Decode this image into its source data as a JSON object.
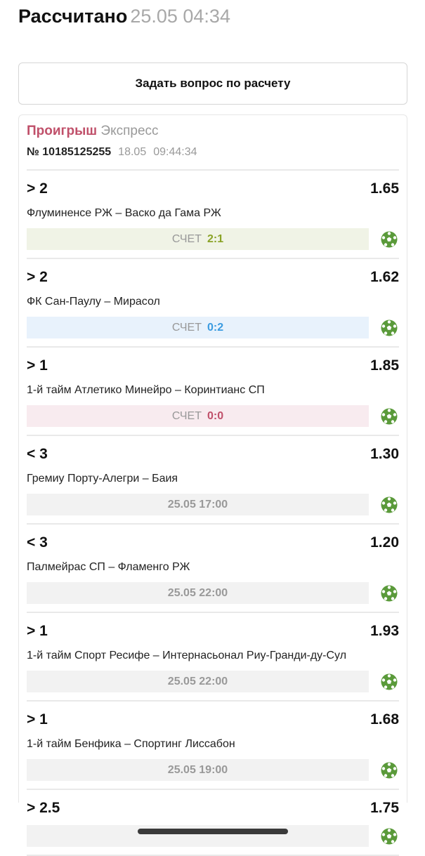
{
  "header": {
    "title": "Рассчитано",
    "datetime": "25.05 04:34"
  },
  "ask_button": "Задать вопрос по расчету",
  "ticket": {
    "status": "Проигрыш",
    "type": "Экспресс",
    "number": "№ 10185125255",
    "date": "18.05",
    "time": "09:44:34"
  },
  "colors": {
    "lose": "#c0506a",
    "win": "#8aa327",
    "neutral": "#3a9be0",
    "ball": "#5a9a3a"
  },
  "score_label": "СЧЕТ",
  "bets": [
    {
      "pick": "> 2",
      "odds": "1.65",
      "match": "Флуминенсе РЖ – Васко да Гама РЖ",
      "score": "2:1",
      "state": "win",
      "icon": "soccer-ball-icon"
    },
    {
      "pick": "> 2",
      "odds": "1.62",
      "match": "ФК Сан-Паулу – Мирасол",
      "score": "0:2",
      "state": "blue",
      "icon": "soccer-ball-icon"
    },
    {
      "pick": "> 1",
      "odds": "1.85",
      "match": "1-й тайм Атлетико Минейро – Коринтианс СП",
      "score": "0:0",
      "state": "lose",
      "icon": "soccer-ball-icon"
    },
    {
      "pick": "< 3",
      "odds": "1.30",
      "match": "Гремиу Порту-Алегри – Баия",
      "when": "25.05 17:00",
      "icon": "soccer-ball-icon"
    },
    {
      "pick": "< 3",
      "odds": "1.20",
      "match": "Палмейрас СП – Фламенго РЖ",
      "when": "25.05 22:00",
      "icon": "soccer-ball-icon"
    },
    {
      "pick": "> 1",
      "odds": "1.93",
      "match": "1-й тайм Спорт Ресифе – Интернасьонал Риу-Гранди-ду-Сул",
      "when": "25.05 22:00",
      "icon": "soccer-ball-icon"
    },
    {
      "pick": "> 1",
      "odds": "1.68",
      "match": "1-й тайм Бенфика – Спортинг Лиссабон",
      "when": "25.05 19:00",
      "icon": "soccer-ball-icon"
    },
    {
      "pick": "> 2.5",
      "odds": "1.75",
      "match": "",
      "icon": "soccer-ball-icon"
    }
  ]
}
